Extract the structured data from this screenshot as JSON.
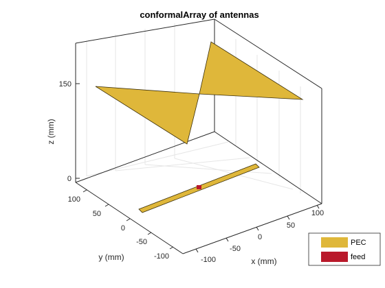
{
  "figure": {
    "title": "conformalArray of antennas",
    "x_axis": {
      "label": "x (mm)",
      "ticks": [
        "-100",
        "-50",
        "0",
        "50",
        "100"
      ]
    },
    "y_axis": {
      "label": "y (mm)",
      "ticks": [
        "100",
        "50",
        "0",
        "-50",
        "-100"
      ]
    },
    "z_axis": {
      "label": "z (mm)",
      "ticks": [
        "150",
        "0"
      ]
    }
  },
  "legend": {
    "entries": [
      {
        "label": "PEC",
        "color": "#DFB73A"
      },
      {
        "label": "feed",
        "color": "#B9192B"
      }
    ]
  },
  "colors": {
    "pec": "#DFB73A",
    "feed": "#B9192B",
    "axes": "#262626",
    "grid": "#e6e6e6"
  }
}
